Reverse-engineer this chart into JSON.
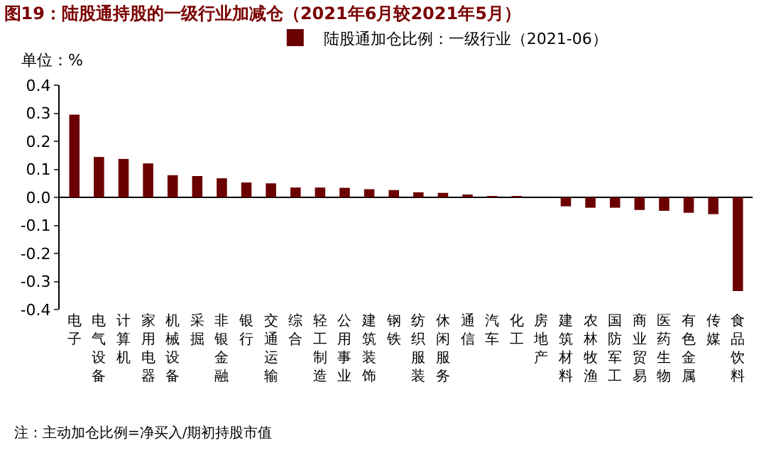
{
  "chart_data": {
    "type": "bar",
    "title": "图19：陆股通持股的一级行业加减仓（2021年6月较2021年5月）",
    "ylabel": "单位：%",
    "categories": [
      "电子",
      "电气设备",
      "计算机",
      "家用电器",
      "机械设备",
      "采掘",
      "非银金融",
      "银行",
      "交通运输",
      "综合",
      "轻工制造",
      "公用事业",
      "建筑装饰",
      "钢铁",
      "纺织服装",
      "休闲服务",
      "通信",
      "汽车",
      "化工",
      "房地产",
      "建筑材料",
      "农林牧渔",
      "国防军工",
      "商业贸易",
      "医药生物",
      "有色金属",
      "传媒",
      "食品饮料"
    ],
    "series": [
      {
        "name": "陆股通加仓比例：一级行业（2021-06）",
        "color": "#6b0000",
        "values": [
          0.295,
          0.144,
          0.137,
          0.121,
          0.079,
          0.076,
          0.068,
          0.053,
          0.05,
          0.035,
          0.035,
          0.034,
          0.029,
          0.026,
          0.018,
          0.016,
          0.01,
          0.005,
          0.004,
          0.0,
          -0.032,
          -0.037,
          -0.037,
          -0.045,
          -0.048,
          -0.055,
          -0.06,
          -0.334
        ]
      }
    ],
    "ylim": [
      -0.4,
      0.4
    ],
    "yticks": [
      {
        "value": -0.4,
        "label": "-0.4"
      },
      {
        "value": -0.3,
        "label": "-0.3"
      },
      {
        "value": -0.2,
        "label": "-0.2"
      },
      {
        "value": -0.1,
        "label": "-0.1"
      },
      {
        "value": 0,
        "label": "0.0"
      },
      {
        "value": 0.1,
        "label": "0.1"
      },
      {
        "value": 0.2,
        "label": "0.2"
      },
      {
        "value": 0.3,
        "label": "0.3"
      },
      {
        "value": 0.4,
        "label": "0.4"
      }
    ],
    "legend": "top",
    "annotations": [
      "注：主动加仓比例=净买入/期初持股市值"
    ]
  }
}
